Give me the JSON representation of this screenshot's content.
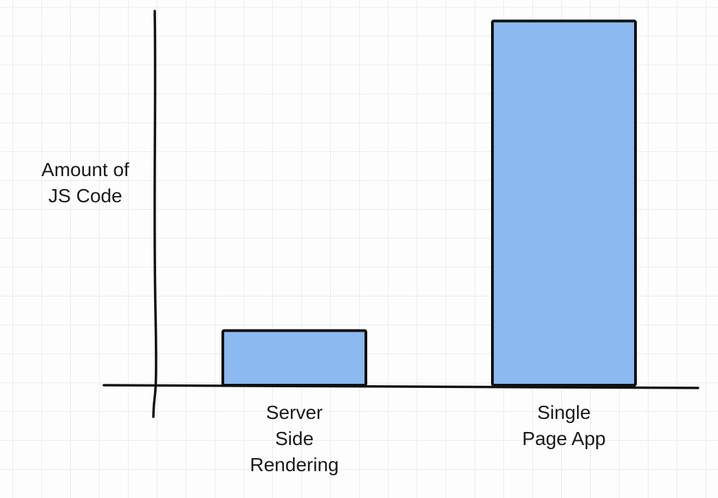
{
  "chart_data": {
    "type": "bar",
    "title": "",
    "ylabel": "Amount of JS Code",
    "ylabel_lines": [
      "Amount of",
      "JS Code"
    ],
    "xlabel": "",
    "categories": [
      "Server Side Rendering",
      "Single Page App"
    ],
    "category_lines": [
      [
        "Server",
        "Side",
        "Rendering"
      ],
      [
        "Single",
        "Page App"
      ]
    ],
    "values": [
      15,
      100
    ],
    "ylim": [
      0,
      105
    ],
    "grid": true,
    "bar_color": "#8cb9ef",
    "outline_color": "#111111"
  }
}
